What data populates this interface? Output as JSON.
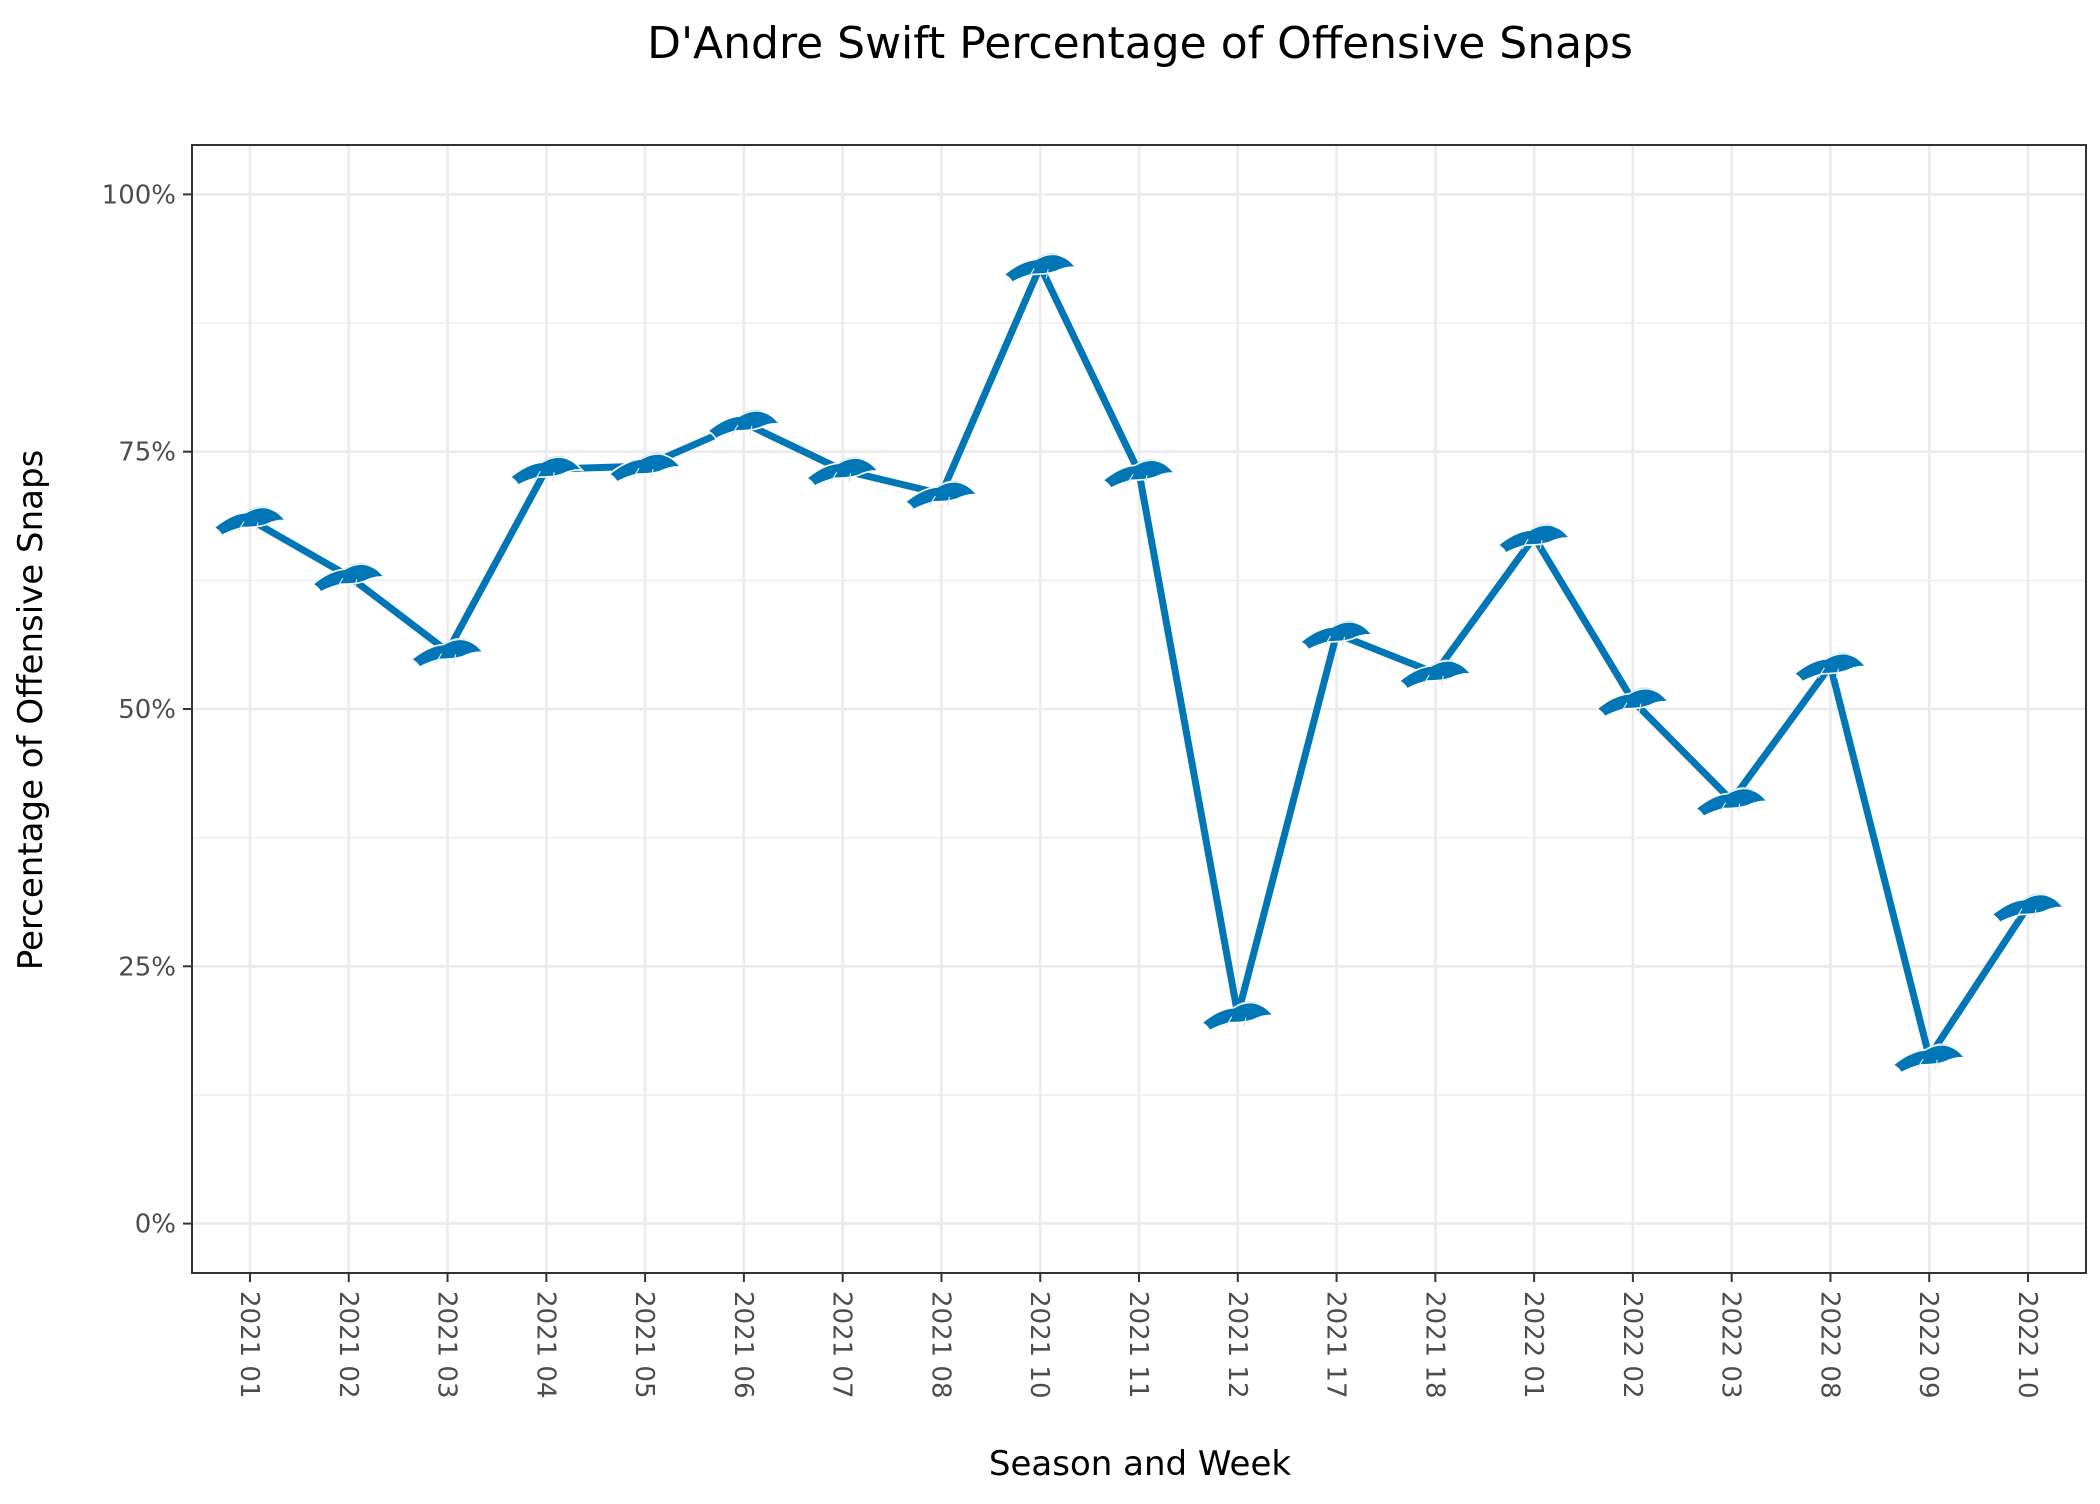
{
  "chart_data": {
    "type": "line",
    "title": "D'Andre Swift Percentage of Offensive Snaps",
    "xlabel": "Season and Week",
    "ylabel": "Percentage of Offensive Snaps",
    "categories": [
      "2021 01",
      "2021 02",
      "2021 03",
      "2021 04",
      "2021 05",
      "2021 06",
      "2021 07",
      "2021 08",
      "2021 10",
      "2021 11",
      "2021 12",
      "2021 17",
      "2021 18",
      "2022 01",
      "2022 02",
      "2022 03",
      "2022 08",
      "2022 09",
      "2022 10"
    ],
    "values": [
      68.4,
      62.9,
      55.6,
      73.3,
      73.6,
      77.8,
      73.2,
      70.9,
      93.0,
      73.0,
      20.3,
      57.3,
      53.5,
      66.7,
      50.8,
      41.1,
      54.2,
      16.2,
      30.8
    ],
    "y_ticks": [
      0,
      25,
      50,
      75,
      100
    ],
    "y_tick_labels": [
      "0%",
      "25%",
      "50%",
      "75%",
      "100%"
    ],
    "ylim": [
      -4.8,
      104.8
    ],
    "grid": true,
    "legend": "none",
    "marker": "lions-logo-icon",
    "colors": {
      "line": "#0076B6",
      "marker": "#0076B6",
      "grid": "#ebebeb",
      "panel_border": "#333333",
      "tick_label": "#4d4d4d"
    }
  }
}
